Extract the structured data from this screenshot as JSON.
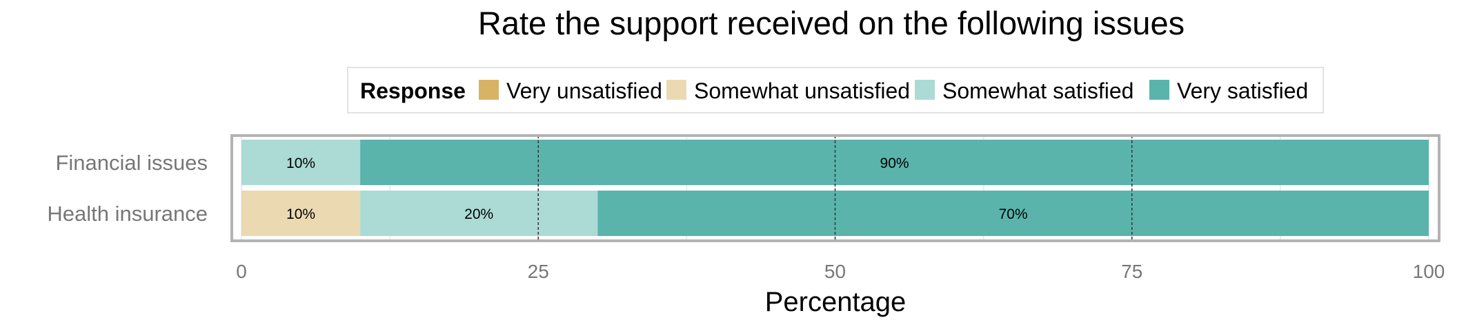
{
  "chart_data": {
    "type": "bar",
    "orientation": "horizontal",
    "stacked": true,
    "title": "Rate the support received on the following issues",
    "xlabel": "Percentage",
    "ylabel": "",
    "xlim": [
      0,
      100
    ],
    "x_ticks": [
      0,
      25,
      50,
      75,
      100
    ],
    "grid": true,
    "reference_lines_dashed": [
      25,
      50,
      75
    ],
    "legend": {
      "title": "Response",
      "position": "top"
    },
    "categories": [
      "Financial issues",
      "Health insurance"
    ],
    "series": [
      {
        "name": "Very unsatisfied",
        "color": "#d8b365",
        "values": [
          0,
          0
        ]
      },
      {
        "name": "Somewhat unsatisfied",
        "color": "#ebd9b2",
        "values": [
          0,
          10
        ]
      },
      {
        "name": "Somewhat satisfied",
        "color": "#acdad5",
        "values": [
          10,
          20
        ]
      },
      {
        "name": "Very satisfied",
        "color": "#5ab4ac",
        "values": [
          90,
          70
        ]
      }
    ],
    "data_labels": [
      [
        "",
        "",
        "10%",
        "90%"
      ],
      [
        "",
        "10%",
        "20%",
        "70%"
      ]
    ]
  }
}
